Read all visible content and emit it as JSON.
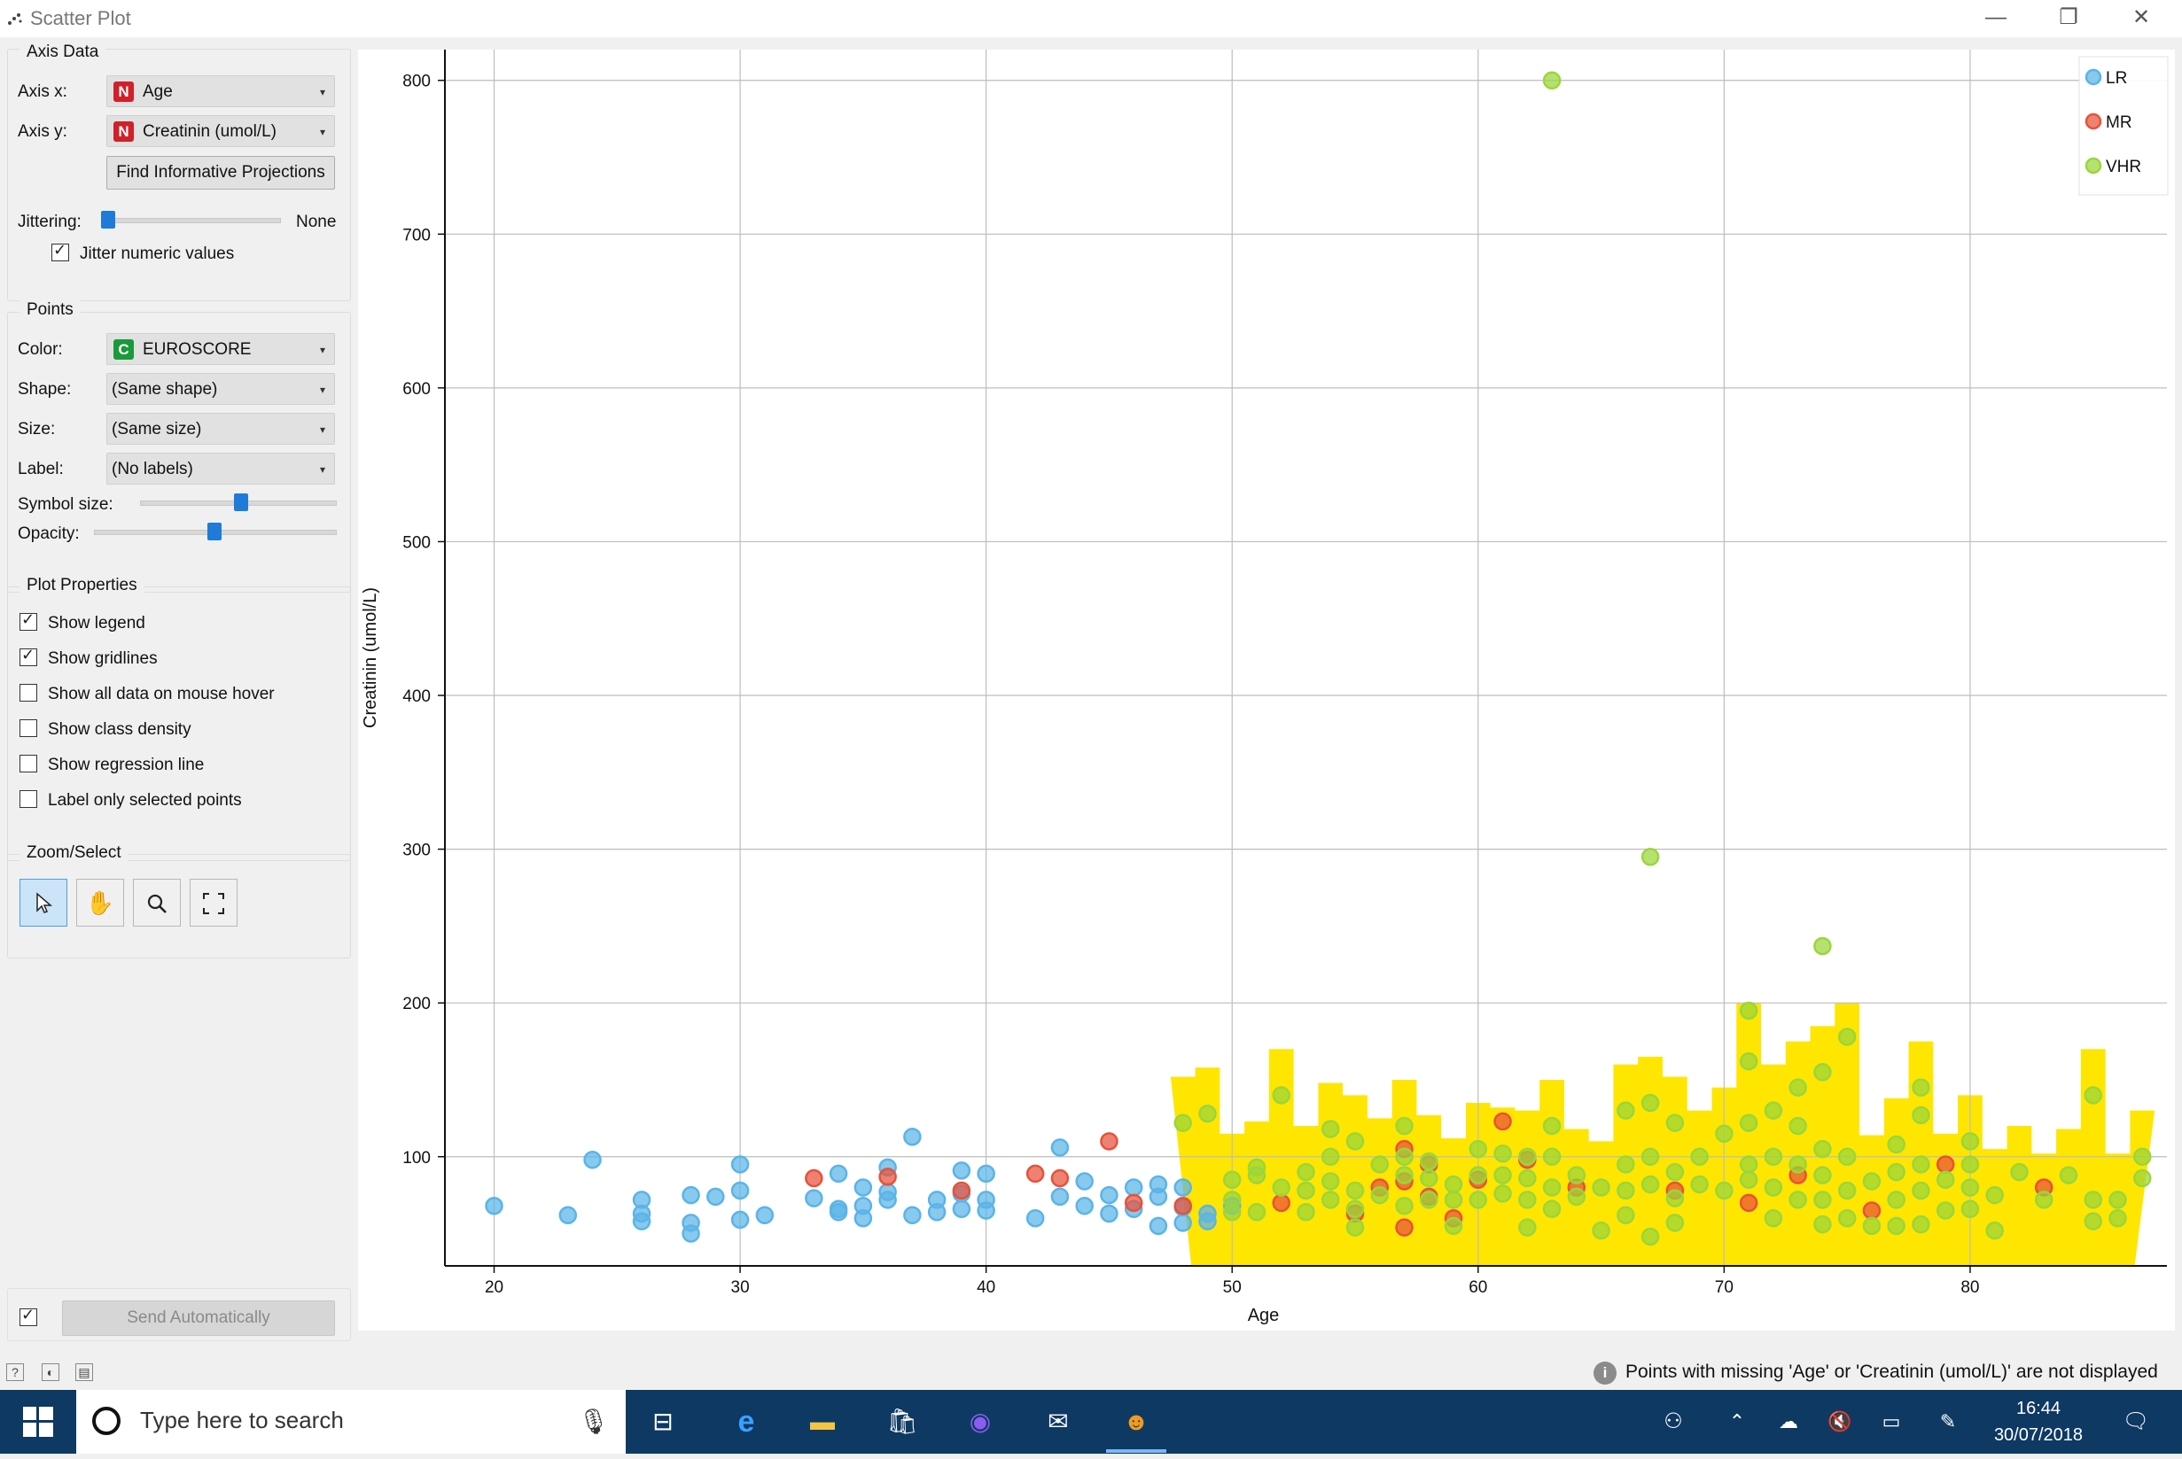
{
  "window": {
    "title": "Scatter Plot",
    "minimize": "—",
    "restore": "❐",
    "close": "✕"
  },
  "axis_data": {
    "group_title": "Axis Data",
    "axis_x_label": "Axis x:",
    "axis_x_value": "Age",
    "axis_x_badge": "N",
    "axis_y_label": "Axis y:",
    "axis_y_value": "Creatinin (umol/L)",
    "axis_y_badge": "N",
    "find_button": "Find Informative Projections",
    "jittering_label": "Jittering:",
    "jittering_value": "None",
    "jitter_numeric_label": "Jitter numeric values",
    "jitter_numeric_checked": true
  },
  "points": {
    "group_title": "Points",
    "color_label": "Color:",
    "color_value": "EUROSCORE",
    "color_badge": "C",
    "shape_label": "Shape:",
    "shape_value": "(Same shape)",
    "size_label": "Size:",
    "size_value": "(Same size)",
    "label_label": "Label:",
    "label_value": "(No labels)",
    "symbol_size_label": "Symbol size:",
    "symbol_size_level": 0.52,
    "opacity_label": "Opacity:",
    "opacity_level": 0.5
  },
  "plot_properties": {
    "group_title": "Plot Properties",
    "options": [
      {
        "label": "Show legend",
        "checked": true
      },
      {
        "label": "Show gridlines",
        "checked": true
      },
      {
        "label": "Show all data on mouse hover",
        "checked": false
      },
      {
        "label": "Show class density",
        "checked": false
      },
      {
        "label": "Show regression line",
        "checked": false
      },
      {
        "label": "Label only selected points",
        "checked": false
      }
    ]
  },
  "zoom_select": {
    "group_title": "Zoom/Select",
    "tools": [
      "select-icon",
      "pan-icon",
      "zoom-icon",
      "reset-zoom-icon"
    ],
    "active": "select-icon"
  },
  "send": {
    "label": "Send Automatically",
    "checked": true
  },
  "status": {
    "message": "Points with missing 'Age' or 'Creatinin (umol/L)' are not displayed"
  },
  "taskbar": {
    "search_placeholder": "Type here to search",
    "time": "16:44",
    "date": "30/07/2018"
  },
  "colors": {
    "LR": "#5ab4e8",
    "MR": "#e8513a",
    "VHR": "#9ad63a",
    "density": "#ffe600"
  },
  "chart_data": {
    "type": "scatter",
    "xlabel": "Age",
    "ylabel": "Creatinin (umol/L)",
    "xlim": [
      18,
      88
    ],
    "ylim": [
      29,
      820
    ],
    "xticks": [
      20,
      30,
      40,
      50,
      60,
      70,
      80
    ],
    "yticks": [
      100,
      200,
      300,
      400,
      500,
      600,
      700,
      800
    ],
    "grid": true,
    "legend_position": "top-right",
    "series": [
      {
        "name": "LR",
        "color": "#5ab4e8",
        "points": [
          [
            20,
            68
          ],
          [
            23,
            62
          ],
          [
            24,
            98
          ],
          [
            26,
            72
          ],
          [
            26,
            63
          ],
          [
            26,
            58
          ],
          [
            28,
            75
          ],
          [
            28,
            57
          ],
          [
            28,
            50
          ],
          [
            29,
            74
          ],
          [
            30,
            95
          ],
          [
            30,
            78
          ],
          [
            30,
            59
          ],
          [
            31,
            62
          ],
          [
            33,
            73
          ],
          [
            34,
            89
          ],
          [
            34,
            66
          ],
          [
            34,
            64
          ],
          [
            35,
            80
          ],
          [
            35,
            68
          ],
          [
            35,
            60
          ],
          [
            36,
            93
          ],
          [
            36,
            77
          ],
          [
            36,
            72
          ],
          [
            37,
            113
          ],
          [
            37,
            62
          ],
          [
            38,
            72
          ],
          [
            38,
            64
          ],
          [
            39,
            91
          ],
          [
            39,
            76
          ],
          [
            39,
            66
          ],
          [
            40,
            89
          ],
          [
            40,
            72
          ],
          [
            40,
            65
          ],
          [
            42,
            60
          ],
          [
            43,
            106
          ],
          [
            43,
            74
          ],
          [
            44,
            84
          ],
          [
            44,
            68
          ],
          [
            45,
            75
          ],
          [
            45,
            63
          ],
          [
            46,
            80
          ],
          [
            46,
            66
          ],
          [
            47,
            82
          ],
          [
            47,
            74
          ],
          [
            47,
            55
          ],
          [
            48,
            80
          ],
          [
            48,
            67
          ],
          [
            48,
            57
          ],
          [
            49,
            63
          ],
          [
            49,
            58
          ],
          [
            50,
            68
          ]
        ]
      },
      {
        "name": "MR",
        "color": "#e8513a",
        "points": [
          [
            33,
            86
          ],
          [
            36,
            87
          ],
          [
            39,
            78
          ],
          [
            42,
            89
          ],
          [
            43,
            86
          ],
          [
            45,
            110
          ],
          [
            46,
            70
          ],
          [
            48,
            68
          ],
          [
            52,
            70
          ],
          [
            55,
            63
          ],
          [
            56,
            80
          ],
          [
            57,
            105
          ],
          [
            57,
            84
          ],
          [
            57,
            54
          ],
          [
            58,
            95
          ],
          [
            58,
            74
          ],
          [
            59,
            60
          ],
          [
            60,
            85
          ],
          [
            61,
            123
          ],
          [
            62,
            98
          ],
          [
            64,
            80
          ],
          [
            68,
            78
          ],
          [
            71,
            70
          ],
          [
            73,
            88
          ],
          [
            76,
            65
          ],
          [
            79,
            95
          ],
          [
            83,
            80
          ]
        ]
      },
      {
        "name": "VHR",
        "color": "#9ad63a",
        "points": [
          [
            63,
            800
          ],
          [
            67,
            295
          ],
          [
            74,
            237
          ],
          [
            71,
            195
          ],
          [
            75,
            178
          ],
          [
            48,
            122
          ],
          [
            49,
            128
          ],
          [
            50,
            85
          ],
          [
            50,
            72
          ],
          [
            50,
            64
          ],
          [
            51,
            88
          ],
          [
            51,
            93
          ],
          [
            51,
            64
          ],
          [
            52,
            140
          ],
          [
            52,
            80
          ],
          [
            53,
            90
          ],
          [
            53,
            78
          ],
          [
            53,
            64
          ],
          [
            54,
            118
          ],
          [
            54,
            100
          ],
          [
            54,
            84
          ],
          [
            54,
            72
          ],
          [
            55,
            110
          ],
          [
            55,
            78
          ],
          [
            55,
            66
          ],
          [
            55,
            54
          ],
          [
            56,
            95
          ],
          [
            56,
            75
          ],
          [
            57,
            120
          ],
          [
            57,
            100
          ],
          [
            57,
            88
          ],
          [
            57,
            68
          ],
          [
            58,
            97
          ],
          [
            58,
            86
          ],
          [
            58,
            72
          ],
          [
            59,
            82
          ],
          [
            59,
            72
          ],
          [
            59,
            55
          ],
          [
            60,
            105
          ],
          [
            60,
            88
          ],
          [
            60,
            72
          ],
          [
            61,
            102
          ],
          [
            61,
            88
          ],
          [
            61,
            76
          ],
          [
            62,
            100
          ],
          [
            62,
            86
          ],
          [
            62,
            72
          ],
          [
            62,
            54
          ],
          [
            63,
            120
          ],
          [
            63,
            100
          ],
          [
            63,
            80
          ],
          [
            63,
            66
          ],
          [
            64,
            88
          ],
          [
            64,
            74
          ],
          [
            65,
            80
          ],
          [
            65,
            52
          ],
          [
            66,
            130
          ],
          [
            66,
            95
          ],
          [
            66,
            78
          ],
          [
            66,
            62
          ],
          [
            67,
            135
          ],
          [
            67,
            100
          ],
          [
            67,
            82
          ],
          [
            67,
            48
          ],
          [
            68,
            122
          ],
          [
            68,
            90
          ],
          [
            68,
            73
          ],
          [
            68,
            57
          ],
          [
            69,
            100
          ],
          [
            69,
            82
          ],
          [
            70,
            115
          ],
          [
            70,
            78
          ],
          [
            71,
            162
          ],
          [
            71,
            122
          ],
          [
            71,
            95
          ],
          [
            71,
            85
          ],
          [
            72,
            130
          ],
          [
            72,
            100
          ],
          [
            72,
            80
          ],
          [
            72,
            60
          ],
          [
            73,
            145
          ],
          [
            73,
            120
          ],
          [
            73,
            95
          ],
          [
            73,
            72
          ],
          [
            74,
            155
          ],
          [
            74,
            105
          ],
          [
            74,
            88
          ],
          [
            74,
            72
          ],
          [
            74,
            56
          ],
          [
            75,
            100
          ],
          [
            75,
            78
          ],
          [
            75,
            60
          ],
          [
            76,
            84
          ],
          [
            76,
            55
          ],
          [
            77,
            108
          ],
          [
            77,
            90
          ],
          [
            77,
            72
          ],
          [
            77,
            55
          ],
          [
            78,
            145
          ],
          [
            78,
            127
          ],
          [
            78,
            95
          ],
          [
            78,
            78
          ],
          [
            78,
            56
          ],
          [
            79,
            85
          ],
          [
            79,
            65
          ],
          [
            80,
            110
          ],
          [
            80,
            95
          ],
          [
            80,
            80
          ],
          [
            80,
            66
          ],
          [
            81,
            75
          ],
          [
            81,
            52
          ],
          [
            82,
            90
          ],
          [
            83,
            72
          ],
          [
            84,
            88
          ],
          [
            85,
            140
          ],
          [
            85,
            72
          ],
          [
            85,
            58
          ],
          [
            86,
            72
          ],
          [
            86,
            60
          ],
          [
            87,
            100
          ],
          [
            87,
            86
          ]
        ]
      }
    ]
  }
}
